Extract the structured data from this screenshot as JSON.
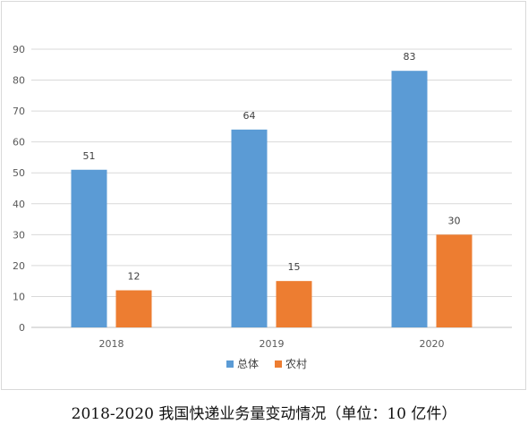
{
  "caption": "2018-2020 我国快递业务量变动情况（单位：10 亿件）",
  "chart_data": {
    "type": "bar",
    "categories": [
      "2018",
      "2019",
      "2020"
    ],
    "series": [
      {
        "name": "总体",
        "values": [
          51,
          64,
          83
        ],
        "color": "#5b9bd5"
      },
      {
        "name": "农村",
        "values": [
          12,
          15,
          30
        ],
        "color": "#ed7d31"
      }
    ],
    "ylim": [
      0,
      90
    ],
    "yticks": [
      0,
      10,
      20,
      30,
      40,
      50,
      60,
      70,
      80,
      90
    ],
    "grid": true,
    "legend_position": "bottom",
    "show_data_labels": true
  }
}
